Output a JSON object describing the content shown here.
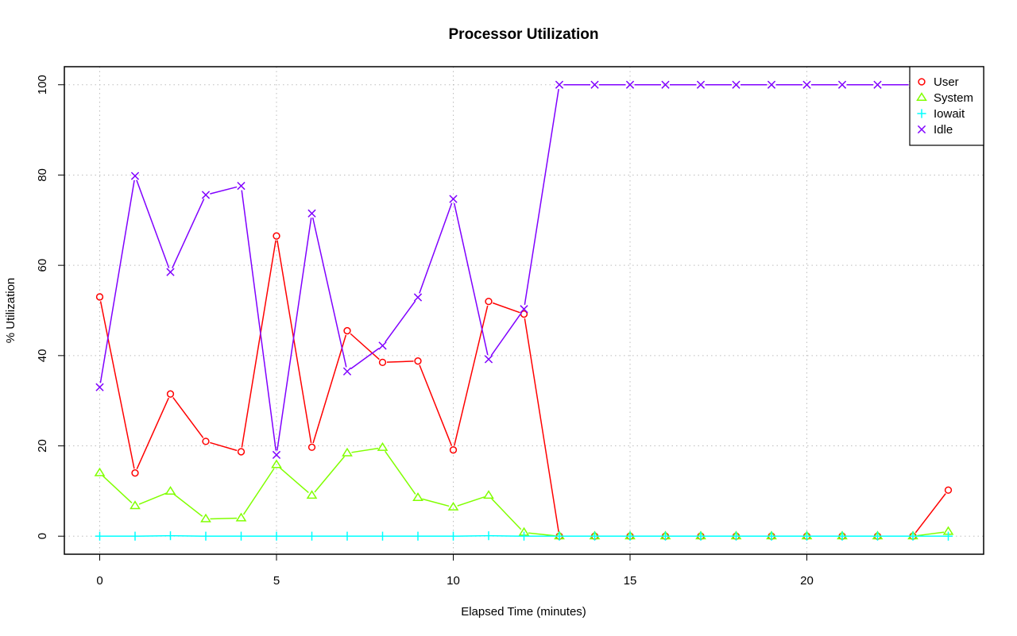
{
  "chart_data": {
    "type": "line",
    "title": "Processor Utilization",
    "xlabel": "Elapsed Time (minutes)",
    "ylabel": "% Utilization",
    "xlim": [
      -1,
      25
    ],
    "ylim": [
      -4,
      104
    ],
    "xticks": [
      0,
      5,
      10,
      15,
      20
    ],
    "yticks": [
      0,
      20,
      40,
      60,
      80,
      100
    ],
    "grid": true,
    "legend_position": "top-right",
    "x": [
      0,
      1,
      2,
      3,
      4,
      5,
      6,
      7,
      8,
      9,
      10,
      11,
      12,
      13,
      14,
      15,
      16,
      17,
      18,
      19,
      20,
      21,
      22,
      23,
      24
    ],
    "series": [
      {
        "name": "User",
        "color": "#ff0000",
        "marker": "circle",
        "values": [
          53,
          14,
          31.5,
          21,
          18.7,
          66.5,
          19.7,
          45.5,
          38.5,
          38.8,
          19.1,
          52,
          49.2,
          0,
          0,
          0,
          0,
          0,
          0,
          0,
          0,
          0,
          0,
          0,
          10.2
        ]
      },
      {
        "name": "System",
        "color": "#80ff00",
        "marker": "triangle",
        "values": [
          14,
          6.7,
          9.9,
          3.8,
          4,
          15.8,
          9,
          18.4,
          19.6,
          8.5,
          6.4,
          9,
          0.8,
          0,
          0,
          0,
          0,
          0,
          0,
          0,
          0,
          0,
          0,
          0,
          1
        ]
      },
      {
        "name": "Iowait",
        "color": "#00ffff",
        "marker": "plus",
        "values": [
          0,
          0,
          0.1,
          0,
          0,
          0,
          0,
          0,
          0,
          0,
          0,
          0.1,
          0,
          0,
          0,
          0,
          0,
          0,
          0,
          0,
          0,
          0,
          0,
          0,
          0
        ]
      },
      {
        "name": "Idle",
        "color": "#8000ff",
        "marker": "cross",
        "values": [
          33,
          79.8,
          58.5,
          75.6,
          77.6,
          18,
          71.5,
          36.5,
          42.2,
          52.9,
          74.7,
          39.2,
          50.3,
          100,
          100,
          100,
          100,
          100,
          100,
          100,
          100,
          100,
          100,
          100,
          89.2
        ]
      }
    ]
  }
}
